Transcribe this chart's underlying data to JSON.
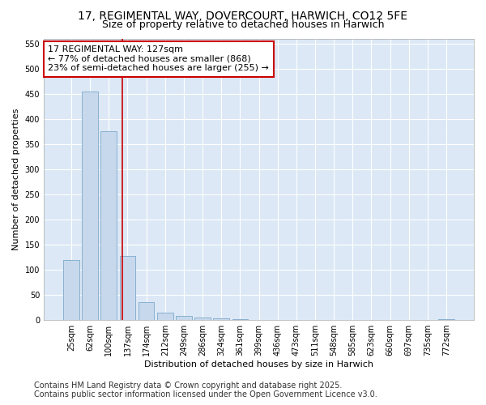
{
  "title": "17, REGIMENTAL WAY, DOVERCOURT, HARWICH, CO12 5FE",
  "subtitle": "Size of property relative to detached houses in Harwich",
  "xlabel": "Distribution of detached houses by size in Harwich",
  "ylabel": "Number of detached properties",
  "categories": [
    "25sqm",
    "62sqm",
    "100sqm",
    "137sqm",
    "174sqm",
    "212sqm",
    "249sqm",
    "286sqm",
    "324sqm",
    "361sqm",
    "399sqm",
    "436sqm",
    "473sqm",
    "511sqm",
    "548sqm",
    "585sqm",
    "623sqm",
    "660sqm",
    "697sqm",
    "735sqm",
    "772sqm"
  ],
  "values": [
    120,
    455,
    375,
    128,
    35,
    15,
    8,
    5,
    4,
    1,
    0,
    0,
    0,
    0,
    0,
    0,
    0,
    0,
    0,
    0,
    2
  ],
  "bar_color": "#c8d8ec",
  "bar_edge_color": "#88b0d0",
  "property_line_color": "#cc0000",
  "annotation_line1": "17 REGIMENTAL WAY: 127sqm",
  "annotation_line2": "← 77% of detached houses are smaller (868)",
  "annotation_line3": "23% of semi-detached houses are larger (255) →",
  "annotation_box_color": "#ffffff",
  "annotation_box_edge": "#cc0000",
  "ylim": [
    0,
    560
  ],
  "yticks": [
    0,
    50,
    100,
    150,
    200,
    250,
    300,
    350,
    400,
    450,
    500,
    550
  ],
  "footer_line1": "Contains HM Land Registry data © Crown copyright and database right 2025.",
  "footer_line2": "Contains public sector information licensed under the Open Government Licence v3.0.",
  "bg_color": "#ffffff",
  "plot_bg_color": "#dce8f5",
  "grid_color": "#ffffff",
  "title_fontsize": 10,
  "subtitle_fontsize": 9,
  "axis_label_fontsize": 8,
  "tick_fontsize": 7,
  "footer_fontsize": 7,
  "annotation_fontsize": 8
}
